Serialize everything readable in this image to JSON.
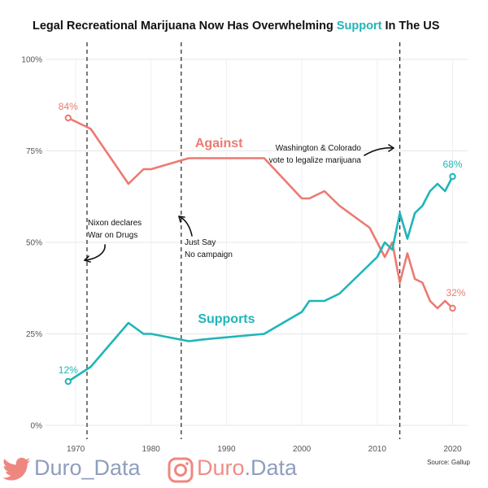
{
  "chart_data": {
    "type": "line",
    "title_parts": [
      "Legal Recreational Marijuana Now Has Overwhelming ",
      "Support",
      " In The US"
    ],
    "title_highlight_color": "#1fb5b8",
    "xlim": [
      1966,
      2022
    ],
    "ylim": [
      0,
      100
    ],
    "x_ticks": [
      1970,
      1980,
      1990,
      2000,
      2010,
      2020
    ],
    "y_ticks": [
      0,
      25,
      50,
      75,
      100
    ],
    "y_tick_labels": [
      "0%",
      "25%",
      "50%",
      "75%",
      "100%"
    ],
    "grid": true,
    "series": [
      {
        "name": "Against",
        "color": "#ec7a72",
        "x": [
          1969,
          1972,
          1977,
          1979,
          1980,
          1985,
          1987,
          1995,
          2000,
          2001,
          2003,
          2005,
          2009,
          2010,
          2011,
          2012,
          2013,
          2014,
          2015,
          2016,
          2017,
          2018,
          2019,
          2020
        ],
        "y": [
          84,
          81,
          66,
          70,
          70,
          73,
          73,
          73,
          62,
          62,
          64,
          60,
          54,
          50,
          46,
          50,
          39,
          47,
          40,
          39,
          34,
          32,
          34,
          32
        ],
        "label_xy": [
          1989,
          76
        ],
        "end_labels": [
          "84%",
          "32%"
        ]
      },
      {
        "name": "Supports",
        "color": "#1fb5b8",
        "x": [
          1969,
          1972,
          1977,
          1979,
          1980,
          1985,
          1987,
          1995,
          2000,
          2001,
          2003,
          2005,
          2009,
          2010,
          2011,
          2012,
          2013,
          2014,
          2015,
          2016,
          2017,
          2018,
          2019,
          2020
        ],
        "y": [
          12,
          16,
          28,
          25,
          25,
          23,
          23.5,
          25,
          31,
          34,
          34,
          36,
          44,
          46,
          50,
          48,
          58,
          51,
          58,
          60,
          64,
          66,
          64,
          68
        ],
        "label_xy": [
          1990,
          28
        ],
        "end_labels": [
          "12%",
          "68%"
        ]
      }
    ],
    "vlines": [
      1971.5,
      1984,
      2013
    ],
    "annotations": [
      {
        "text": [
          "Nixon declares",
          "War on Drugs"
        ]
      },
      {
        "text": [
          "Just Say",
          "No campaign"
        ]
      },
      {
        "text": [
          "Washington & Colorado",
          "vote to legalize marijuana"
        ]
      }
    ],
    "source": "Source: Gallup"
  },
  "footer": {
    "twitter_handle": "Duro_Data",
    "instagram_handle_a": "Duro",
    "instagram_handle_b": ".Data",
    "icons": [
      "twitter-icon",
      "instagram-icon"
    ]
  }
}
